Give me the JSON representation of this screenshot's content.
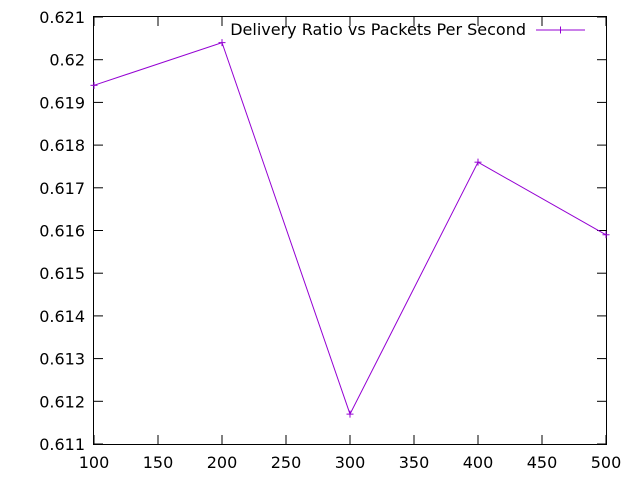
{
  "chart_data": {
    "type": "line",
    "title": "",
    "xlabel": "",
    "ylabel": "",
    "xlim": [
      100,
      500
    ],
    "ylim": [
      0.611,
      0.621
    ],
    "x_ticks": [
      "100",
      "150",
      "200",
      "250",
      "300",
      "350",
      "400",
      "450",
      "500"
    ],
    "y_ticks": [
      "0.611",
      "0.612",
      "0.613",
      "0.614",
      "0.615",
      "0.616",
      "0.617",
      "0.618",
      "0.619",
      "0.62",
      "0.621"
    ],
    "grid": false,
    "legend_position": "top-right",
    "series": [
      {
        "name": "Delivery Ratio vs Packets Per Second",
        "color": "#9400d3",
        "marker": "plus",
        "x": [
          100,
          200,
          300,
          400,
          500
        ],
        "y": [
          0.6194,
          0.6204,
          0.6117,
          0.6176,
          0.6159
        ]
      }
    ]
  }
}
